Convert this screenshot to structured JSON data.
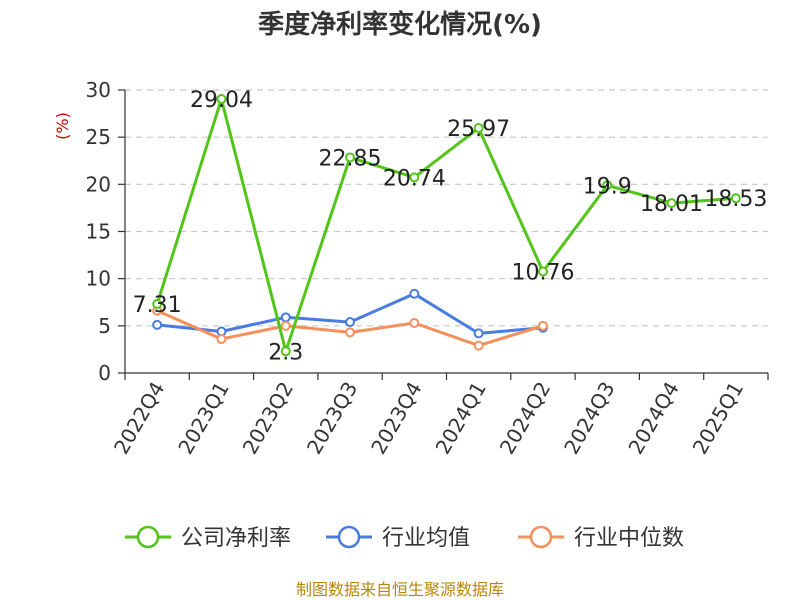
{
  "chart_data": {
    "type": "line",
    "title": "季度净利率变化情况(%)",
    "ylabel": "(%)",
    "categories": [
      "2022Q4",
      "2023Q1",
      "2023Q2",
      "2023Q3",
      "2023Q4",
      "2024Q1",
      "2024Q2",
      "2024Q3",
      "2024Q4",
      "2025Q1"
    ],
    "ylim": [
      0,
      30
    ],
    "yticks": [
      0,
      5,
      10,
      15,
      20,
      25,
      30
    ],
    "grid": true,
    "legend_position": "bottom",
    "series": [
      {
        "name": "公司净利率",
        "color": "#52c41a",
        "values": [
          7.31,
          29.04,
          2.3,
          22.85,
          20.74,
          25.97,
          10.76,
          19.9,
          18.01,
          18.53
        ],
        "labels": [
          "7.31",
          "29.04",
          "2.3",
          "22.85",
          "20.74",
          "25.97",
          "10.76",
          "19.9",
          "18.01",
          "18.53"
        ]
      },
      {
        "name": "行业均值",
        "color": "#4a7be0",
        "values": [
          5.1,
          4.4,
          5.9,
          5.4,
          8.4,
          4.2,
          4.8,
          null,
          null,
          null
        ]
      },
      {
        "name": "行业中位数",
        "color": "#f4905c",
        "values": [
          6.6,
          3.6,
          5.0,
          4.3,
          5.3,
          2.9,
          5.0,
          null,
          null,
          null
        ]
      }
    ]
  },
  "source": "制图数据来自恒生聚源数据库"
}
